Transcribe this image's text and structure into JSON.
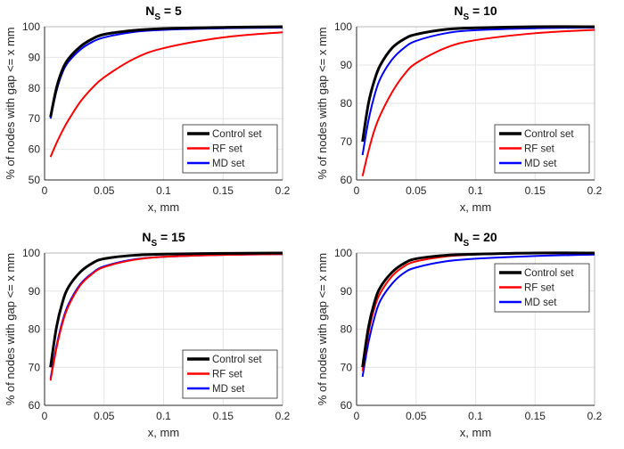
{
  "chart_data": [
    {
      "type": "line",
      "title": {
        "main": "N",
        "sub": "S",
        "rest": " = 5"
      },
      "xlabel": "x, mm",
      "ylabel": "% of nodes with gap <= x mm",
      "xlim": [
        0,
        0.2
      ],
      "ylim": [
        50,
        100
      ],
      "xticks": [
        "0",
        "0.05",
        "0.1",
        "0.15",
        "0.2"
      ],
      "yticks": [
        "50",
        "60",
        "70",
        "80",
        "90",
        "100"
      ],
      "grid": true,
      "legend_position": "bottom-right",
      "x": [
        0.005,
        0.01,
        0.015,
        0.02,
        0.03,
        0.04,
        0.05,
        0.075,
        0.1,
        0.15,
        0.2
      ],
      "series": [
        {
          "name": "Control set",
          "color": "#000000",
          "values": [
            70.5,
            80,
            86,
            89.5,
            93.5,
            96,
            97.5,
            98.8,
            99.4,
            99.8,
            100
          ]
        },
        {
          "name": "RF set",
          "color": "#ff0000",
          "values": [
            57.5,
            62,
            66,
            69.5,
            75.5,
            80,
            83.5,
            89.5,
            93,
            96.5,
            98.2
          ]
        },
        {
          "name": "MD set",
          "color": "#0000ff",
          "values": [
            70,
            79,
            85,
            88.5,
            92.5,
            95,
            96.5,
            98.3,
            99,
            99.5,
            99.7
          ]
        }
      ]
    },
    {
      "type": "line",
      "title": {
        "main": "N",
        "sub": "S",
        "rest": " = 10"
      },
      "xlabel": "x, mm",
      "ylabel": "% of nodes with gap <= x mm",
      "xlim": [
        0,
        0.2
      ],
      "ylim": [
        60,
        100
      ],
      "xticks": [
        "0",
        "0.05",
        "0.1",
        "0.15",
        "0.2"
      ],
      "yticks": [
        "60",
        "70",
        "80",
        "90",
        "100"
      ],
      "grid": true,
      "legend_position": "bottom-right",
      "x": [
        0.005,
        0.01,
        0.015,
        0.02,
        0.03,
        0.04,
        0.05,
        0.075,
        0.1,
        0.15,
        0.2
      ],
      "series": [
        {
          "name": "Control set",
          "color": "#000000",
          "values": [
            70,
            80,
            86,
            90,
            94.5,
            96.8,
            98,
            99.3,
            99.7,
            100,
            100
          ]
        },
        {
          "name": "RF set",
          "color": "#ff0000",
          "values": [
            61,
            67.5,
            73,
            77,
            83,
            87.5,
            90.5,
            94.5,
            96.5,
            98.3,
            99.2
          ]
        },
        {
          "name": "MD set",
          "color": "#0000ff",
          "values": [
            66.5,
            75.5,
            82,
            86.5,
            91.5,
            94.5,
            96.3,
            98.3,
            99.1,
            99.6,
            99.8
          ]
        }
      ]
    },
    {
      "type": "line",
      "title": {
        "main": "N",
        "sub": "S",
        "rest": " = 15"
      },
      "xlabel": "x, mm",
      "ylabel": "% of nodes with gap <= x mm",
      "xlim": [
        0,
        0.2
      ],
      "ylim": [
        60,
        100
      ],
      "xticks": [
        "0",
        "0.05",
        "0.1",
        "0.15",
        "0.2"
      ],
      "yticks": [
        "60",
        "70",
        "80",
        "90",
        "100"
      ],
      "grid": true,
      "legend_position": "bottom-right",
      "x": [
        0.005,
        0.01,
        0.015,
        0.02,
        0.03,
        0.04,
        0.05,
        0.075,
        0.1,
        0.15,
        0.2
      ],
      "series": [
        {
          "name": "Control set",
          "color": "#000000",
          "values": [
            70,
            80.5,
            87,
            91,
            95,
            97.3,
            98.5,
            99.4,
            99.7,
            99.9,
            100
          ]
        },
        {
          "name": "RF set",
          "color": "#ff0000",
          "values": [
            66.5,
            75,
            81.5,
            86,
            91.5,
            94.5,
            96.3,
            98.2,
            99,
            99.5,
            99.7
          ]
        },
        {
          "name": "MD set",
          "color": "#0000ff",
          "values": [
            67,
            75.5,
            82,
            86.5,
            91.8,
            94.7,
            96.5,
            98.3,
            99,
            99.5,
            99.7
          ]
        }
      ]
    },
    {
      "type": "line",
      "title": {
        "main": "N",
        "sub": "S",
        "rest": " = 20"
      },
      "xlabel": "x, mm",
      "ylabel": "% of nodes with gap <= x mm",
      "xlim": [
        0,
        0.2
      ],
      "ylim": [
        60,
        100
      ],
      "xticks": [
        "0",
        "0.05",
        "0.1",
        "0.15",
        "0.2"
      ],
      "yticks": [
        "60",
        "70",
        "80",
        "90",
        "100"
      ],
      "grid": true,
      "legend_position": "top-right",
      "x": [
        0.005,
        0.01,
        0.015,
        0.02,
        0.03,
        0.04,
        0.05,
        0.075,
        0.1,
        0.15,
        0.2
      ],
      "series": [
        {
          "name": "Control set",
          "color": "#000000",
          "values": [
            70,
            80.5,
            87,
            91,
            95,
            97.3,
            98.5,
            99.4,
            99.7,
            100,
            100
          ]
        },
        {
          "name": "RF set",
          "color": "#ff0000",
          "values": [
            69,
            79,
            85.5,
            89.5,
            94,
            96.5,
            97.8,
            99.1,
            99.6,
            99.9,
            100
          ]
        },
        {
          "name": "MD set",
          "color": "#0000ff",
          "values": [
            67.5,
            76.5,
            83,
            87.5,
            92,
            94.8,
            96.2,
            97.8,
            98.5,
            99.2,
            99.6
          ]
        }
      ]
    }
  ]
}
